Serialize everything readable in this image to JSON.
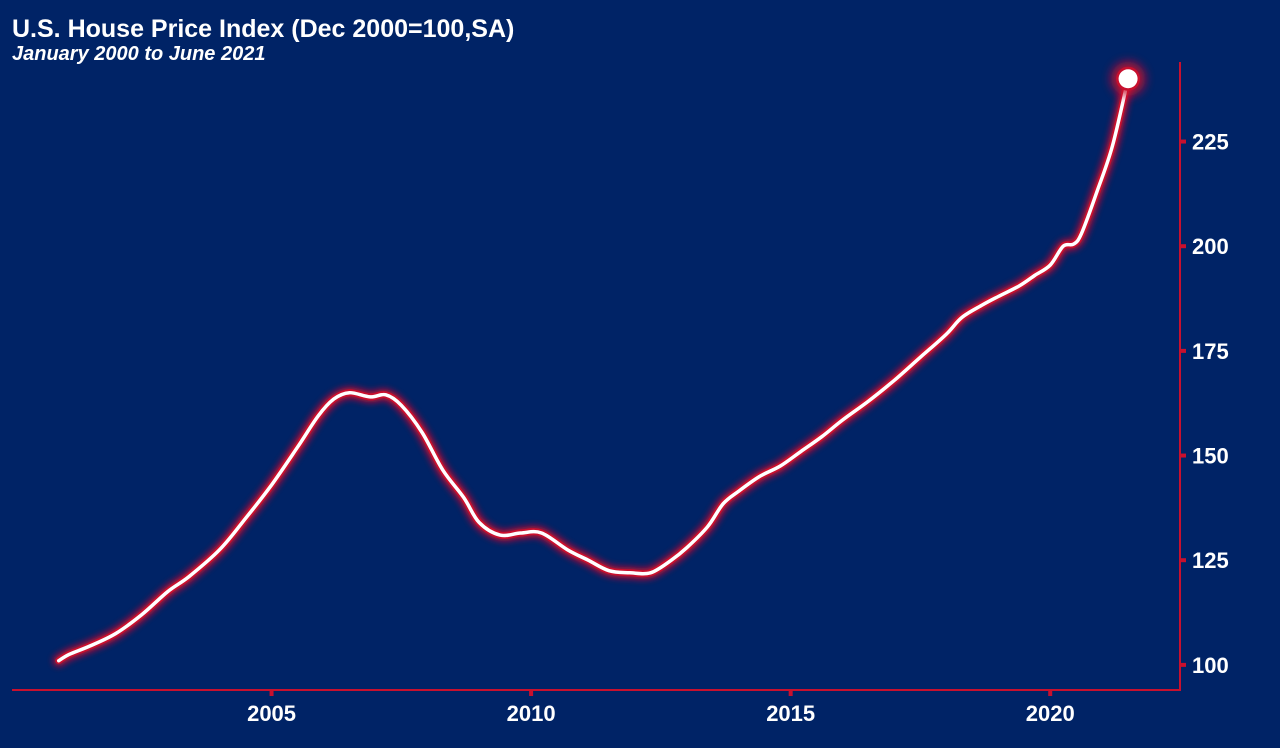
{
  "colors": {
    "background": "#002366",
    "line": "#ffffff",
    "glow": "#c8102e",
    "axis": "#c8102e",
    "text": "#ffffff"
  },
  "chart_data": {
    "type": "line",
    "title": "U.S. House Price Index (Dec 2000=100,SA)",
    "subtitle": "January 2000 to June 2021",
    "xlabel": "",
    "ylabel": "",
    "y_axis_side": "right",
    "grid": false,
    "legend": "none",
    "xlim": [
      2000.0,
      2022.5
    ],
    "ylim": [
      94,
      244
    ],
    "x_ticks": [
      2005,
      2010,
      2015,
      2020
    ],
    "x_tick_labels": [
      "2005",
      "2010",
      "2015",
      "2020"
    ],
    "y_ticks": [
      100,
      125,
      150,
      175,
      200,
      225
    ],
    "y_tick_labels": [
      "100",
      "125",
      "150",
      "175",
      "200",
      "225"
    ],
    "series": [
      {
        "end_marker": true,
        "x": [
          2000.9,
          2001.1,
          2001.5,
          2002.0,
          2002.5,
          2003.0,
          2003.4,
          2004.0,
          2004.5,
          2005.0,
          2005.5,
          2005.9,
          2006.2,
          2006.5,
          2006.9,
          2007.2,
          2007.5,
          2007.9,
          2008.3,
          2008.7,
          2009.0,
          2009.4,
          2009.8,
          2010.2,
          2010.7,
          2011.1,
          2011.5,
          2011.9,
          2012.3,
          2012.7,
          2013.0,
          2013.4,
          2013.7,
          2014.0,
          2014.4,
          2014.8,
          2015.2,
          2015.6,
          2016.0,
          2016.5,
          2017.0,
          2017.5,
          2018.0,
          2018.3,
          2018.7,
          2019.0,
          2019.4,
          2019.7,
          2020.0,
          2020.25,
          2020.45,
          2020.6,
          2020.9,
          2021.2,
          2021.5
        ],
        "y": [
          101,
          102.5,
          104.5,
          107.5,
          112,
          117.5,
          121,
          127.5,
          135,
          143,
          152,
          159.5,
          163.5,
          165,
          164,
          164.5,
          162,
          155.5,
          146.5,
          140,
          134,
          131,
          131.5,
          131.5,
          127.5,
          125,
          122.5,
          122,
          122,
          125,
          128,
          133,
          138.5,
          141.5,
          145,
          147.5,
          151,
          154.5,
          158.5,
          163,
          168,
          173.5,
          179,
          183,
          186,
          188,
          190.5,
          193,
          195.5,
          200,
          200.5,
          203,
          213,
          224,
          240
        ]
      }
    ]
  }
}
